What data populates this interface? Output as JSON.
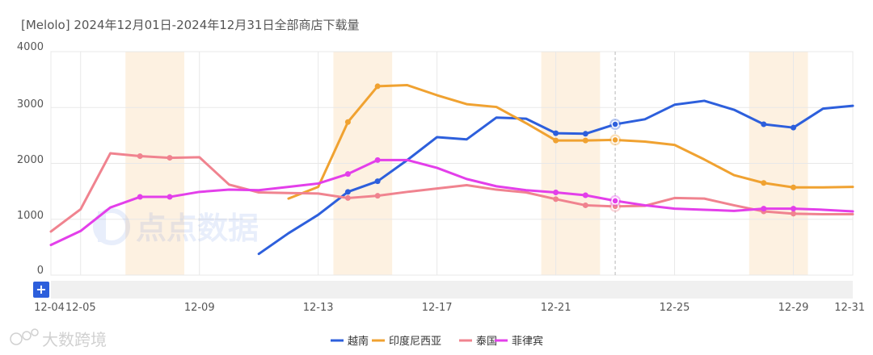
{
  "title": "[Melolo] 2024年12月01日-2024年12月31日全部商店下载量",
  "watermark_center": "点点数据",
  "watermark_corner": "大数跨境",
  "zoom_button_label": "+",
  "colors": {
    "vietnam": "#2d5fdc",
    "indonesia": "#f0a231",
    "thailand": "#f0838f",
    "philippines": "#e33fea",
    "highlight_band": "#fdf1e1",
    "grid": "#e8e8e8"
  },
  "chart_data": {
    "type": "line",
    "title": "[Melolo] 2024年12月01日-2024年12月31日全部商店下载量",
    "xlabel": "",
    "ylabel": "",
    "ylim": [
      0,
      4000
    ],
    "y_ticks": [
      0,
      1000,
      2000,
      3000,
      4000
    ],
    "x_tick_labels": [
      "12-04",
      "12-05",
      "12-09",
      "12-13",
      "12-17",
      "12-21",
      "12-25",
      "12-29",
      "12-31"
    ],
    "x_tick_days": [
      4,
      5,
      9,
      13,
      17,
      21,
      25,
      29,
      31
    ],
    "weekend_bands": [
      [
        7,
        8
      ],
      [
        14,
        15
      ],
      [
        21,
        22
      ],
      [
        28,
        29
      ]
    ],
    "hover_day": 23,
    "legend_position": "bottom",
    "series": [
      {
        "key": "vietnam",
        "name": "越南",
        "start_day": 11,
        "values": [
          380,
          750,
          1080,
          1490,
          1680,
          2060,
          2470,
          2430,
          2820,
          2800,
          2540,
          2530,
          2700,
          2790,
          3050,
          3120,
          2960,
          2700,
          2640,
          2980,
          3030
        ]
      },
      {
        "key": "indonesia",
        "name": "印度尼西亚",
        "start_day": 12,
        "values": [
          1370,
          1580,
          2740,
          3380,
          3400,
          3220,
          3060,
          3010,
          2720,
          2410,
          2410,
          2420,
          2390,
          2330,
          2070,
          1790,
          1650,
          1570,
          1570,
          1580
        ]
      },
      {
        "key": "thailand",
        "name": "泰国",
        "start_day": 4,
        "values": [
          780,
          1180,
          2180,
          2130,
          2100,
          2110,
          1620,
          1480,
          1470,
          1460,
          1380,
          1420,
          1490,
          1550,
          1610,
          1530,
          1480,
          1360,
          1250,
          1230,
          1240,
          1380,
          1370,
          1250,
          1140,
          1100,
          1090,
          1090
        ]
      },
      {
        "key": "philippines",
        "name": "菲律宾",
        "start_day": 4,
        "values": [
          540,
          790,
          1210,
          1400,
          1400,
          1490,
          1530,
          1520,
          1580,
          1640,
          1810,
          2060,
          2060,
          1920,
          1720,
          1590,
          1520,
          1480,
          1430,
          1330,
          1250,
          1190,
          1170,
          1150,
          1190,
          1190,
          1170,
          1140
        ]
      }
    ]
  }
}
